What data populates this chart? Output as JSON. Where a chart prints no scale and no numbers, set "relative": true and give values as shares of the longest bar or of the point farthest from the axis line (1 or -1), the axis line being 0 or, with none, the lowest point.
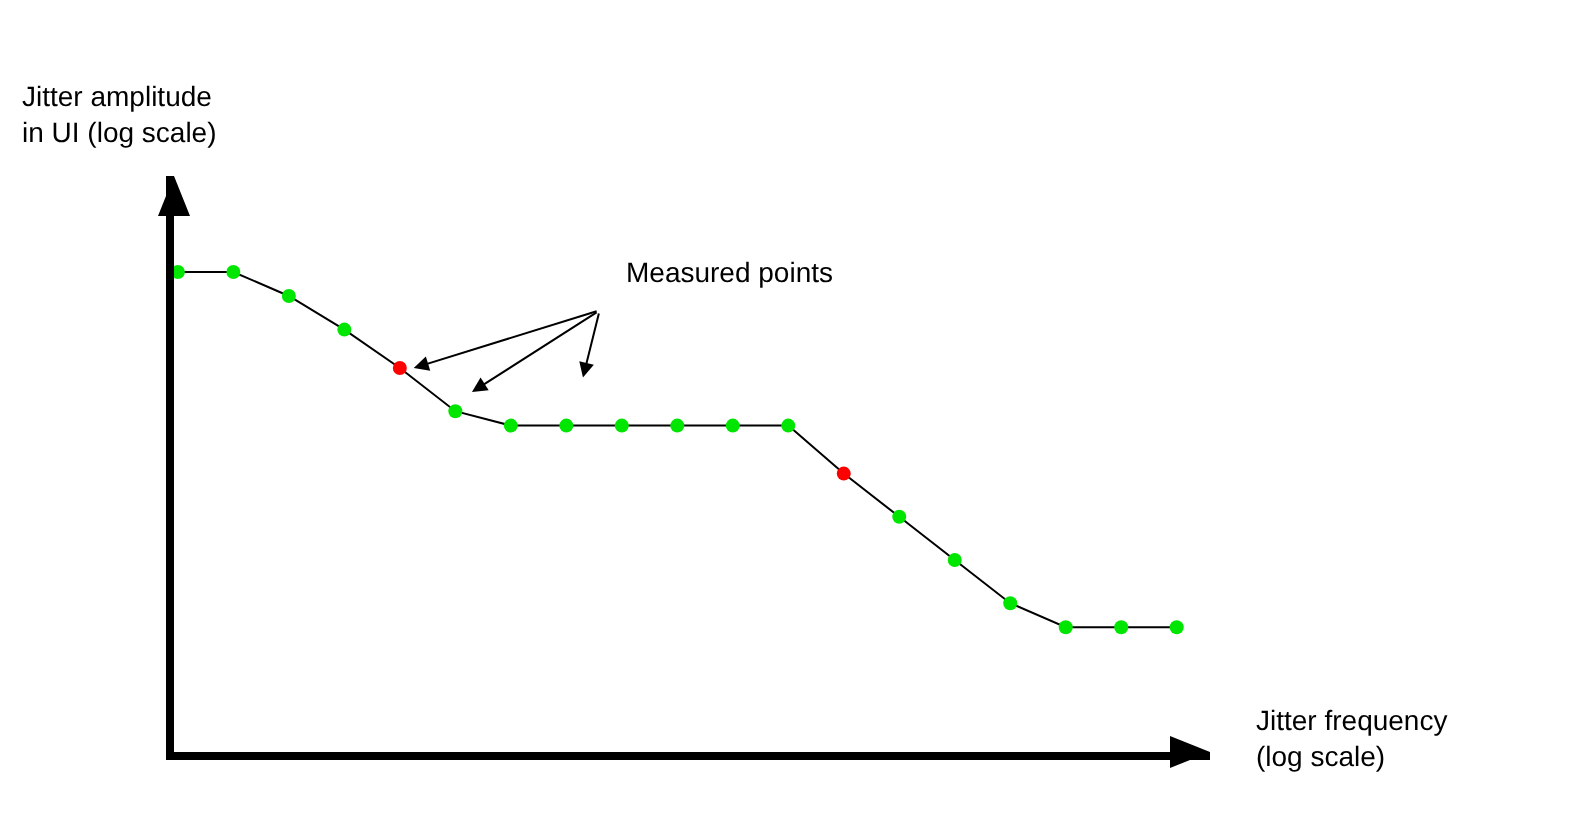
{
  "chart_data": {
    "type": "line",
    "relative": true,
    "ylabel": "Jitter amplitude\nin UI (log scale)",
    "xlabel": "Jitter frequency\n(log scale)",
    "categories": [
      null,
      null,
      null,
      null,
      null,
      null,
      null,
      null,
      null,
      null,
      null,
      null,
      null,
      null,
      null,
      null,
      null,
      null,
      null
    ],
    "series": [
      {
        "color": "#000000",
        "values": [
          1,
          1,
          0.95,
          0.88,
          0.8,
          0.71,
          0.68,
          0.68,
          0.68,
          0.68,
          0.68,
          0.68,
          0.58,
          0.49,
          0.4,
          0.31,
          0.26,
          0.26,
          0.26
        ],
        "colors": [
          "#00e600",
          "#00e600",
          "#00e600",
          "#00e600",
          "#ff0000",
          "#00e600",
          "#00e600",
          "#00e600",
          "#00e600",
          "#00e600",
          "#00e600",
          "#00e600",
          "#ff0000",
          "#00e600",
          "#00e600",
          "#00e600",
          "#00e600",
          "#00e600",
          "#00e600"
        ]
      }
    ],
    "marker": "circle",
    "line_style": "solid",
    "annotations": [
      "Measured points"
    ]
  }
}
